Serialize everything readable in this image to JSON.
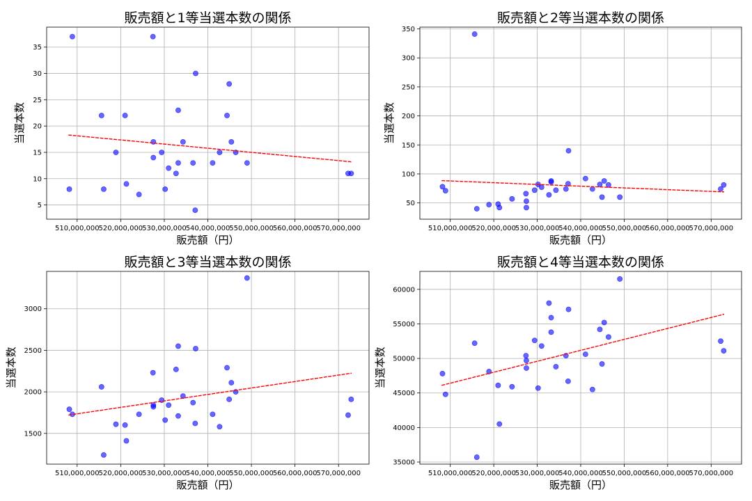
{
  "chart_data": [
    {
      "type": "scatter",
      "title": "販売額と1等当選本数の関係",
      "xlabel": "販売額（円）",
      "ylabel": "当選本数",
      "xlim": [
        503000000,
        577000000
      ],
      "ylim": [
        2.3,
        38.8
      ],
      "xticks": [
        510000000,
        520000000,
        530000000,
        540000000,
        550000000,
        560000000,
        570000000
      ],
      "xtick_labels": [
        "510,000,000",
        "520,000,000",
        "530,000,000",
        "540,000,000",
        "550,000,000",
        "560,000,000",
        "570,000,000"
      ],
      "yticks": [
        5,
        10,
        15,
        20,
        25,
        30,
        35
      ],
      "ytick_labels": [
        "5",
        "10",
        "15",
        "20",
        "25",
        "30",
        "35"
      ],
      "grid": true,
      "series": [
        {
          "values": [
            [
              508200000,
              8
            ],
            [
              508900000,
              37
            ],
            [
              515600000,
              22
            ],
            [
              516100000,
              8
            ],
            [
              518900000,
              15
            ],
            [
              521000000,
              22
            ],
            [
              521300000,
              9
            ],
            [
              524200000,
              7
            ],
            [
              527400000,
              37
            ],
            [
              527500000,
              17
            ],
            [
              527500000,
              14
            ],
            [
              529400000,
              15
            ],
            [
              530200000,
              8
            ],
            [
              531000000,
              12
            ],
            [
              532700000,
              11
            ],
            [
              533200000,
              23
            ],
            [
              533200000,
              13
            ],
            [
              534300000,
              17
            ],
            [
              536600000,
              13
            ],
            [
              537100000,
              4
            ],
            [
              537200000,
              30
            ],
            [
              541100000,
              13
            ],
            [
              542700000,
              15
            ],
            [
              544400000,
              22
            ],
            [
              544900000,
              28
            ],
            [
              545400000,
              17
            ],
            [
              546400000,
              15
            ],
            [
              549000000,
              13
            ],
            [
              572200000,
              11
            ],
            [
              572900000,
              11
            ]
          ]
        }
      ],
      "trendline": {
        "x": [
          508000000,
          573000000
        ],
        "y": [
          18.3,
          13.2
        ]
      },
      "colors": {
        "points": "#0000ff",
        "trend": "#ff0000"
      }
    },
    {
      "type": "scatter",
      "title": "販売額と2等当選本数の関係",
      "xlabel": "販売額（円）",
      "ylabel": "当選本数",
      "xlim": [
        503000000,
        577000000
      ],
      "ylim": [
        22,
        353
      ],
      "xticks": [
        510000000,
        520000000,
        530000000,
        540000000,
        550000000,
        560000000,
        570000000
      ],
      "xtick_labels": [
        "510,000,000",
        "520,000,000",
        "530,000,000",
        "540,000,000",
        "550,000,000",
        "560,000,000",
        "570,000,000"
      ],
      "yticks": [
        50,
        100,
        150,
        200,
        250,
        300,
        350
      ],
      "ytick_labels": [
        "50",
        "100",
        "150",
        "200",
        "250",
        "300",
        "350"
      ],
      "grid": true,
      "series": [
        {
          "values": [
            [
              508200000,
              78
            ],
            [
              508900000,
              71
            ],
            [
              515600000,
              341
            ],
            [
              516100000,
              40
            ],
            [
              518900000,
              47
            ],
            [
              521000000,
              48
            ],
            [
              521300000,
              42
            ],
            [
              524200000,
              57
            ],
            [
              527400000,
              66
            ],
            [
              527500000,
              53
            ],
            [
              527500000,
              42
            ],
            [
              529400000,
              72
            ],
            [
              530200000,
              82
            ],
            [
              531000000,
              77
            ],
            [
              532700000,
              64
            ],
            [
              533200000,
              88
            ],
            [
              533200000,
              86
            ],
            [
              534300000,
              72
            ],
            [
              536600000,
              74
            ],
            [
              537100000,
              83
            ],
            [
              537200000,
              140
            ],
            [
              541100000,
              92
            ],
            [
              542700000,
              74
            ],
            [
              544400000,
              82
            ],
            [
              544900000,
              60
            ],
            [
              545400000,
              88
            ],
            [
              546400000,
              81
            ],
            [
              549000000,
              60
            ],
            [
              572200000,
              74
            ],
            [
              572900000,
              81
            ]
          ]
        }
      ],
      "trendline": {
        "x": [
          508000000,
          573000000
        ],
        "y": [
          88.5,
          69.0
        ]
      },
      "colors": {
        "points": "#0000ff",
        "trend": "#ff0000"
      }
    },
    {
      "type": "scatter",
      "title": "販売額と3等当選本数の関係",
      "xlabel": "販売額（円）",
      "ylabel": "当選本数",
      "xlim": [
        503000000,
        577000000
      ],
      "ylim": [
        1130,
        3450
      ],
      "xticks": [
        510000000,
        520000000,
        530000000,
        540000000,
        550000000,
        560000000,
        570000000
      ],
      "xtick_labels": [
        "510,000,000",
        "520,000,000",
        "530,000,000",
        "540,000,000",
        "550,000,000",
        "560,000,000",
        "570,000,000"
      ],
      "yticks": [
        1500,
        2000,
        2500,
        3000
      ],
      "ytick_labels": [
        "1500",
        "2000",
        "2500",
        "3000"
      ],
      "grid": true,
      "series": [
        {
          "values": [
            [
              508200000,
              1790
            ],
            [
              508900000,
              1730
            ],
            [
              515600000,
              2060
            ],
            [
              516100000,
              1240
            ],
            [
              518900000,
              1610
            ],
            [
              521000000,
              1600
            ],
            [
              521300000,
              1410
            ],
            [
              524200000,
              1730
            ],
            [
              527400000,
              2230
            ],
            [
              527500000,
              1840
            ],
            [
              527500000,
              1820
            ],
            [
              529400000,
              1900
            ],
            [
              530200000,
              1660
            ],
            [
              531000000,
              1840
            ],
            [
              532700000,
              2270
            ],
            [
              533200000,
              2550
            ],
            [
              533200000,
              1710
            ],
            [
              534300000,
              1950
            ],
            [
              536600000,
              1870
            ],
            [
              537100000,
              1620
            ],
            [
              537200000,
              2520
            ],
            [
              541100000,
              1730
            ],
            [
              542700000,
              1580
            ],
            [
              544400000,
              2290
            ],
            [
              544900000,
              1910
            ],
            [
              545400000,
              2110
            ],
            [
              546400000,
              2000
            ],
            [
              549000000,
              3370
            ],
            [
              572200000,
              1720
            ],
            [
              572900000,
              1910
            ]
          ]
        }
      ],
      "trendline": {
        "x": [
          508000000,
          573000000
        ],
        "y": [
          1720,
          2225
        ]
      },
      "colors": {
        "points": "#0000ff",
        "trend": "#ff0000"
      }
    },
    {
      "type": "scatter",
      "title": "販売額と4等当選本数の関係",
      "xlabel": "販売額（円）",
      "ylabel": "当選本数",
      "xlim": [
        503000000,
        577000000
      ],
      "ylim": [
        34700,
        62600
      ],
      "xticks": [
        510000000,
        520000000,
        530000000,
        540000000,
        550000000,
        560000000,
        570000000
      ],
      "xtick_labels": [
        "510,000,000",
        "520,000,000",
        "530,000,000",
        "540,000,000",
        "550,000,000",
        "560,000,000",
        "570,000,000"
      ],
      "yticks": [
        35000,
        40000,
        45000,
        50000,
        55000,
        60000
      ],
      "ytick_labels": [
        "35000",
        "40000",
        "45000",
        "50000",
        "55000",
        "60000"
      ],
      "grid": true,
      "series": [
        {
          "values": [
            [
              508200000,
              47800
            ],
            [
              508900000,
              44800
            ],
            [
              515600000,
              52200
            ],
            [
              516100000,
              35700
            ],
            [
              518900000,
              48100
            ],
            [
              521000000,
              46100
            ],
            [
              521300000,
              40500
            ],
            [
              524200000,
              45900
            ],
            [
              527400000,
              50400
            ],
            [
              527500000,
              49700
            ],
            [
              527500000,
              48600
            ],
            [
              529400000,
              52600
            ],
            [
              530200000,
              45700
            ],
            [
              531000000,
              51800
            ],
            [
              532700000,
              58000
            ],
            [
              533200000,
              55900
            ],
            [
              533200000,
              53800
            ],
            [
              534300000,
              48800
            ],
            [
              536600000,
              50400
            ],
            [
              537100000,
              46700
            ],
            [
              537200000,
              57100
            ],
            [
              541100000,
              50600
            ],
            [
              542700000,
              45500
            ],
            [
              544400000,
              54200
            ],
            [
              544900000,
              49200
            ],
            [
              545400000,
              55200
            ],
            [
              546400000,
              53100
            ],
            [
              549000000,
              61500
            ],
            [
              572200000,
              52500
            ],
            [
              572900000,
              51100
            ]
          ]
        }
      ],
      "trendline": {
        "x": [
          508000000,
          573000000
        ],
        "y": [
          46100,
          56400
        ]
      },
      "colors": {
        "points": "#0000ff",
        "trend": "#ff0000"
      }
    }
  ]
}
